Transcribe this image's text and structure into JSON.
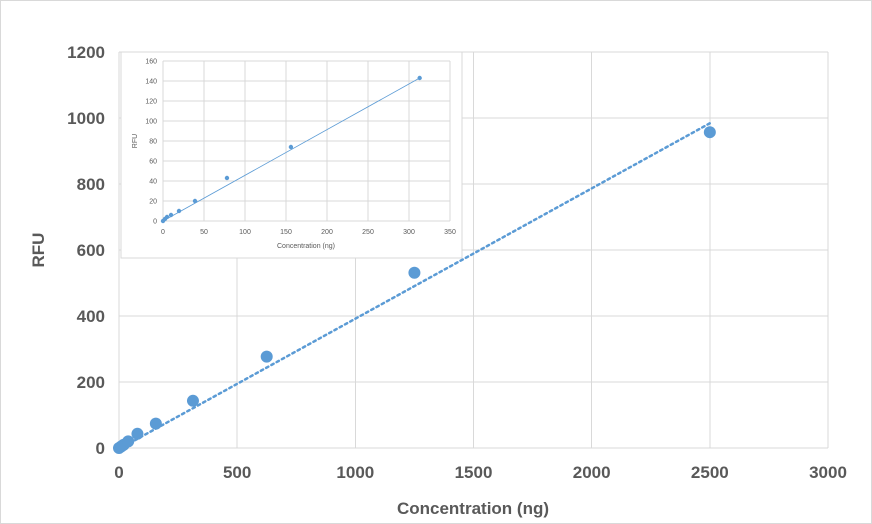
{
  "chart_data": [
    {
      "type": "scatter",
      "xlabel": "Concentration (ng)",
      "ylabel": "RFU",
      "xlim": [
        0,
        3000
      ],
      "ylim": [
        0,
        1200
      ],
      "xticks": [
        0,
        500,
        1000,
        1500,
        2000,
        2500,
        3000
      ],
      "yticks": [
        0,
        200,
        400,
        600,
        800,
        1000,
        1200
      ],
      "grid": true,
      "series": [
        {
          "x": [
            0,
            10,
            20,
            39,
            78,
            156,
            313,
            625,
            1250,
            2500
          ],
          "y": [
            0,
            5,
            10,
            20,
            43,
            74,
            143,
            277,
            531,
            957
          ],
          "color": "#5b9bd5"
        }
      ],
      "trendline": {
        "style": "dotted",
        "x": [
          0,
          2500
        ],
        "y": [
          -3,
          984
        ]
      }
    },
    {
      "type": "scatter",
      "xlabel": "Concentration (ng)",
      "ylabel": "RFU",
      "xlim": [
        0,
        350
      ],
      "ylim": [
        0,
        160
      ],
      "xticks": [
        0,
        50,
        100,
        150,
        200,
        250,
        300,
        350
      ],
      "yticks": [
        0,
        20,
        40,
        60,
        80,
        100,
        120,
        140,
        160
      ],
      "grid": true,
      "series": [
        {
          "x": [
            0,
            2.4,
            4.9,
            9.8,
            19.5,
            39,
            78,
            156,
            313
          ],
          "y": [
            0,
            2,
            4,
            6,
            10,
            20,
            43,
            74,
            143
          ],
          "color": "#5b9bd5"
        }
      ],
      "trendline": {
        "style": "solid-thin",
        "x": [
          0,
          313
        ],
        "y": [
          0,
          143
        ]
      }
    }
  ]
}
